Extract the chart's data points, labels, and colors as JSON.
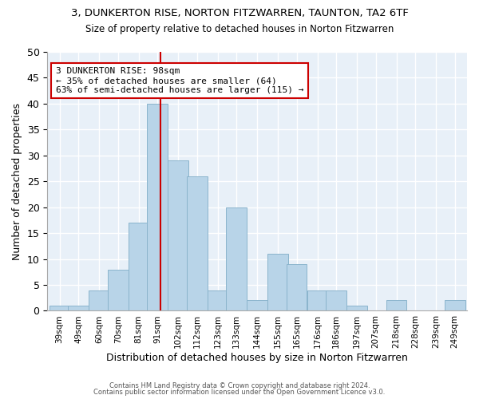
{
  "title": "3, DUNKERTON RISE, NORTON FITZWARREN, TAUNTON, TA2 6TF",
  "subtitle": "Size of property relative to detached houses in Norton Fitzwarren",
  "xlabel": "Distribution of detached houses by size in Norton Fitzwarren",
  "ylabel": "Number of detached properties",
  "bar_color": "#b8d4e8",
  "bar_edgecolor": "#8ab4cc",
  "background_color": "#e8f0f8",
  "grid_color": "#ffffff",
  "vline_color": "#cc0000",
  "vline_x": 98,
  "categories": [
    "39sqm",
    "49sqm",
    "60sqm",
    "70sqm",
    "81sqm",
    "91sqm",
    "102sqm",
    "112sqm",
    "123sqm",
    "133sqm",
    "144sqm",
    "155sqm",
    "165sqm",
    "176sqm",
    "186sqm",
    "197sqm",
    "207sqm",
    "218sqm",
    "228sqm",
    "239sqm",
    "249sqm"
  ],
  "bin_starts": [
    39,
    49,
    60,
    70,
    81,
    91,
    102,
    112,
    123,
    133,
    144,
    155,
    165,
    176,
    186,
    197,
    207,
    218,
    228,
    239,
    249
  ],
  "bin_width": 11,
  "values": [
    1,
    1,
    4,
    8,
    17,
    40,
    29,
    26,
    4,
    20,
    2,
    11,
    9,
    4,
    4,
    1,
    0,
    2,
    0,
    0,
    2
  ],
  "ylim": [
    0,
    50
  ],
  "yticks": [
    0,
    5,
    10,
    15,
    20,
    25,
    30,
    35,
    40,
    45,
    50
  ],
  "annotation_text": "3 DUNKERTON RISE: 98sqm\n← 35% of detached houses are smaller (64)\n63% of semi-detached houses are larger (115) →",
  "annotation_box_edgecolor": "#cc0000",
  "footnote1": "Contains HM Land Registry data © Crown copyright and database right 2024.",
  "footnote2": "Contains public sector information licensed under the Open Government Licence v3.0."
}
